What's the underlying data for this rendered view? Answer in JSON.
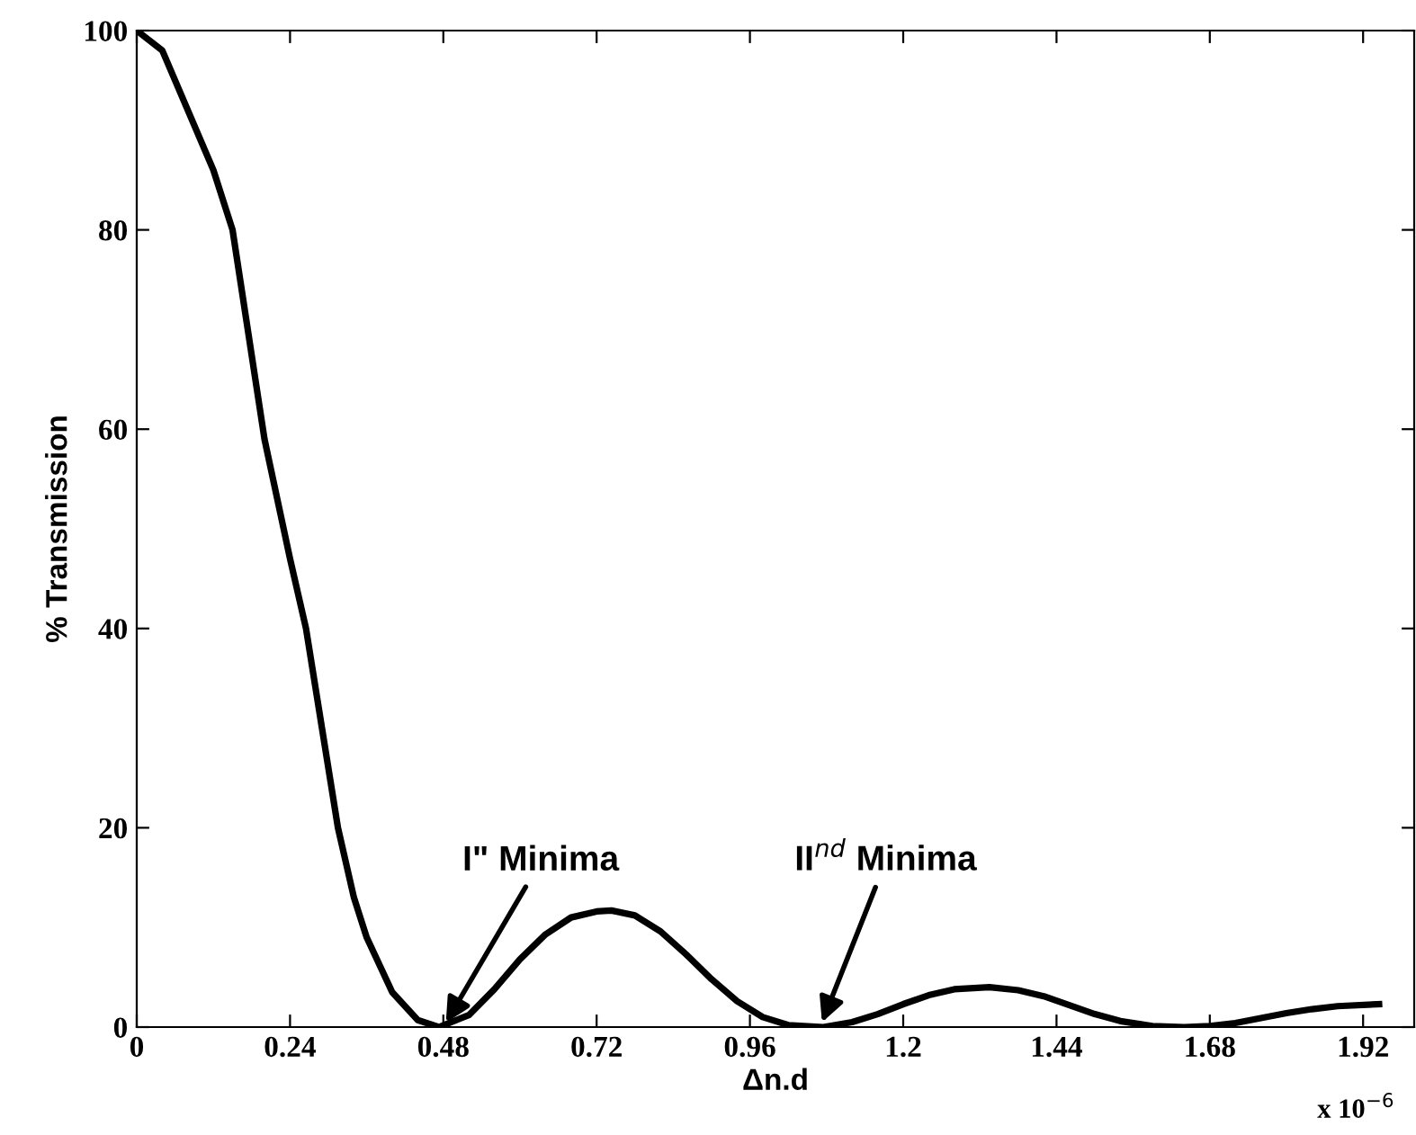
{
  "chart_data": {
    "type": "line",
    "xlabel": "Δn.d",
    "ylabel": "% Transmission",
    "x": [
      0,
      0.04,
      0.08,
      0.12,
      0.15,
      0.2,
      0.24,
      0.265,
      0.29,
      0.315,
      0.34,
      0.36,
      0.4,
      0.44,
      0.473,
      0.52,
      0.56,
      0.6,
      0.64,
      0.68,
      0.72,
      0.743,
      0.78,
      0.82,
      0.86,
      0.9,
      0.94,
      0.98,
      1.02,
      1.075,
      1.12,
      1.16,
      1.2,
      1.24,
      1.28,
      1.335,
      1.38,
      1.42,
      1.46,
      1.5,
      1.54,
      1.59,
      1.64,
      1.68,
      1.72,
      1.76,
      1.8,
      1.84,
      1.88,
      1.945
    ],
    "series": [
      {
        "color": "#000000",
        "values": [
          100,
          98,
          92,
          86,
          80,
          59,
          47,
          40,
          30,
          20,
          13,
          9,
          3.5,
          0.7,
          0,
          1.2,
          3.8,
          6.8,
          9.3,
          11,
          11.6,
          11.7,
          11.2,
          9.6,
          7.3,
          4.8,
          2.6,
          1,
          0.2,
          0,
          0.5,
          1.3,
          2.3,
          3.2,
          3.8,
          4,
          3.7,
          3.1,
          2.2,
          1.3,
          0.6,
          0.1,
          0,
          0.1,
          0.4,
          0.9,
          1.4,
          1.8,
          2.1,
          2.3
        ]
      }
    ],
    "xlim": [
      0,
      2.0
    ],
    "ylim": [
      0,
      100
    ],
    "xticks": [
      0,
      0.24,
      0.48,
      0.72,
      0.96,
      1.2,
      1.44,
      1.68,
      1.92
    ],
    "yticks": [
      0,
      20,
      40,
      60,
      80,
      100
    ],
    "grid": false,
    "marker": "none",
    "line_style": "solid",
    "annotations": [
      {
        "text": "I\" Minima",
        "x": 0.48,
        "y": 0
      },
      {
        "text": "II$^{nd}$ Minima",
        "x": 1.07,
        "y": 0
      },
      "x 10$^{−6}$"
    ]
  }
}
